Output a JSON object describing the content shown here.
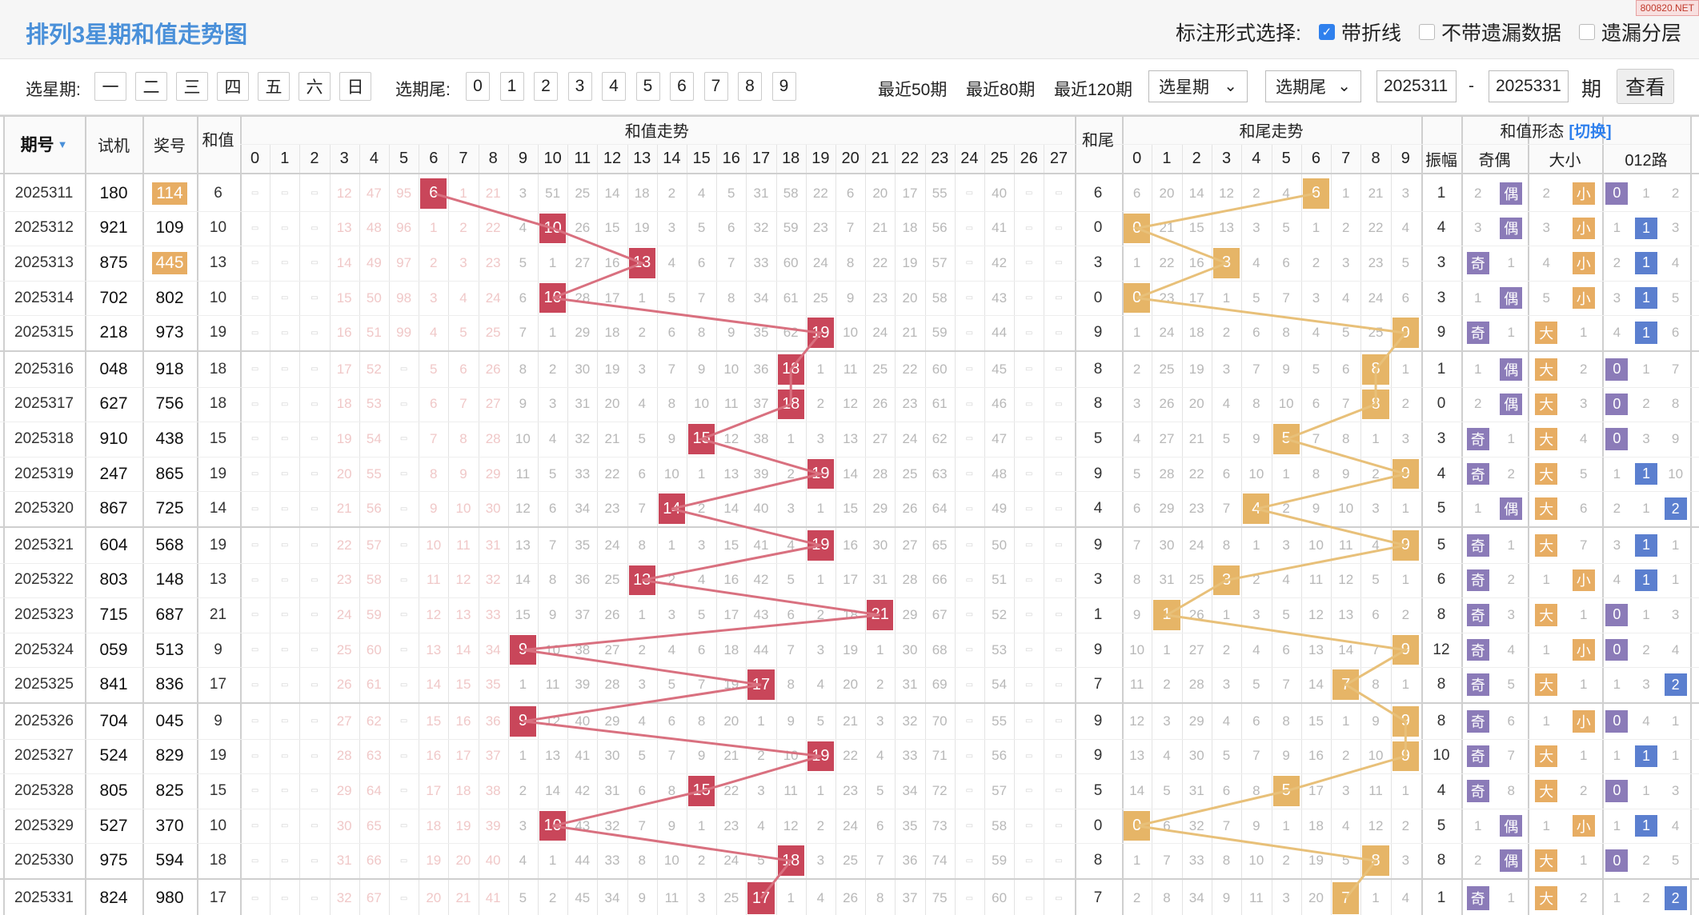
{
  "page_title": "排列3星期和值走势图",
  "site_badge": "800820.NET",
  "options": {
    "label": "标注形式选择:",
    "items": [
      {
        "label": "带折线",
        "checked": true
      },
      {
        "label": "不带遗漏数据",
        "checked": false
      },
      {
        "label": "遗漏分层",
        "checked": false
      }
    ]
  },
  "filter": {
    "weekday_label": "选星期:",
    "weekdays": [
      "一",
      "二",
      "三",
      "四",
      "五",
      "六",
      "日"
    ],
    "tail_label": "选期尾:",
    "tails": [
      "0",
      "1",
      "2",
      "3",
      "4",
      "5",
      "6",
      "7",
      "8",
      "9"
    ],
    "quick_links": [
      "最近50期",
      "最近80期",
      "最近120期"
    ],
    "weekday_select": "选星期",
    "tail_select": "选期尾",
    "from": "2025311",
    "sep": "-",
    "to": "2025331",
    "unit": "期",
    "query": "查看"
  },
  "headers": {
    "period": "期号",
    "shiji": "试机",
    "jianghao": "奖号",
    "hezhi": "和值",
    "hezhi_trend": "和值走势",
    "hezhi_cols": [
      "0",
      "1",
      "2",
      "3",
      "4",
      "5",
      "6",
      "7",
      "8",
      "9",
      "10",
      "11",
      "12",
      "13",
      "14",
      "15",
      "16",
      "17",
      "18",
      "19",
      "20",
      "21",
      "22",
      "23",
      "24",
      "25",
      "26",
      "27"
    ],
    "hewei": "和尾",
    "hewei_trend": "和尾走势",
    "hewei_cols": [
      "0",
      "1",
      "2",
      "3",
      "4",
      "5",
      "6",
      "7",
      "8",
      "9"
    ],
    "form": "和值形态",
    "switch": "[切换]",
    "form_cols": [
      "振幅",
      "奇偶",
      "大小",
      "012路"
    ]
  },
  "rows": [
    {
      "p": "2025311",
      "s": "180",
      "j": "114",
      "jh": true,
      "h": "6",
      "w": "6",
      "z": "1",
      "oe": "偶",
      "oec": "2",
      "bs": "小",
      "bsc": "2",
      "r": "0",
      "r1": "1",
      "r2": "2",
      "hm": [
        "",
        "",
        "",
        "12",
        "47",
        "95",
        "",
        "1",
        "21",
        "3",
        "51",
        "25",
        "14",
        "18",
        "2",
        "4",
        "5",
        "31",
        "58",
        "22",
        "6",
        "20",
        "17",
        "55",
        "",
        "40",
        "",
        ""
      ],
      "wm": [
        "6",
        "20",
        "14",
        "12",
        "2",
        "4",
        "",
        "1",
        "21",
        "3"
      ]
    },
    {
      "p": "2025312",
      "s": "921",
      "j": "109",
      "jh": false,
      "h": "10",
      "w": "0",
      "z": "4",
      "oe": "偶",
      "oec": "3",
      "bs": "小",
      "bsc": "3",
      "r": "1",
      "r0": "1",
      "r2": "3",
      "hm": [
        "",
        "",
        "",
        "13",
        "48",
        "96",
        "1",
        "2",
        "22",
        "4",
        "",
        "26",
        "15",
        "19",
        "3",
        "5",
        "6",
        "32",
        "59",
        "23",
        "7",
        "21",
        "18",
        "56",
        "",
        "41",
        "",
        ""
      ],
      "wm": [
        "",
        "21",
        "15",
        "13",
        "3",
        "5",
        "1",
        "2",
        "22",
        "4"
      ]
    },
    {
      "p": "2025313",
      "s": "875",
      "j": "445",
      "jh": true,
      "h": "13",
      "w": "3",
      "z": "3",
      "oe": "奇",
      "oec": "1",
      "bs": "小",
      "bsc": "4",
      "r": "1",
      "r0": "2",
      "r2": "4",
      "hm": [
        "",
        "",
        "",
        "14",
        "49",
        "97",
        "2",
        "3",
        "23",
        "5",
        "1",
        "27",
        "16",
        "",
        "4",
        "6",
        "7",
        "33",
        "60",
        "24",
        "8",
        "22",
        "19",
        "57",
        "",
        "42",
        "",
        ""
      ],
      "wm": [
        "1",
        "22",
        "16",
        "",
        "4",
        "6",
        "2",
        "3",
        "23",
        "5"
      ]
    },
    {
      "p": "2025314",
      "s": "702",
      "j": "802",
      "jh": false,
      "h": "10",
      "w": "0",
      "z": "3",
      "oe": "偶",
      "oec": "1",
      "bs": "小",
      "bsc": "5",
      "r": "1",
      "r0": "3",
      "r2": "5",
      "hm": [
        "",
        "",
        "",
        "15",
        "50",
        "98",
        "3",
        "4",
        "24",
        "6",
        "",
        "28",
        "17",
        "1",
        "5",
        "7",
        "8",
        "34",
        "61",
        "25",
        "9",
        "23",
        "20",
        "58",
        "",
        "43",
        "",
        ""
      ],
      "wm": [
        "",
        "23",
        "17",
        "1",
        "5",
        "7",
        "3",
        "4",
        "24",
        "6"
      ]
    },
    {
      "p": "2025315",
      "s": "218",
      "j": "973",
      "jh": false,
      "h": "19",
      "w": "9",
      "z": "9",
      "oe": "奇",
      "oec": "1",
      "bs": "大",
      "bsc": "1",
      "r": "1",
      "r0": "4",
      "r2": "6",
      "hm": [
        "",
        "",
        "",
        "16",
        "51",
        "99",
        "4",
        "5",
        "25",
        "7",
        "1",
        "29",
        "18",
        "2",
        "6",
        "8",
        "9",
        "35",
        "62",
        "",
        "10",
        "24",
        "21",
        "59",
        "",
        "44",
        "",
        ""
      ],
      "wm": [
        "1",
        "24",
        "18",
        "2",
        "6",
        "8",
        "4",
        "5",
        "25",
        ""
      ]
    },
    {
      "p": "2025316",
      "s": "048",
      "j": "918",
      "jh": false,
      "h": "18",
      "w": "8",
      "z": "1",
      "oe": "偶",
      "oec": "1",
      "bs": "大",
      "bsc": "2",
      "r": "0",
      "r1": "1",
      "r2": "7",
      "hm": [
        "",
        "",
        "",
        "17",
        "52",
        "",
        "5",
        "6",
        "26",
        "8",
        "2",
        "30",
        "19",
        "3",
        "7",
        "9",
        "10",
        "36",
        "",
        "1",
        "11",
        "25",
        "22",
        "60",
        "",
        "45",
        "",
        ""
      ],
      "wm": [
        "2",
        "25",
        "19",
        "3",
        "7",
        "9",
        "5",
        "6",
        "",
        "1"
      ]
    },
    {
      "p": "2025317",
      "s": "627",
      "j": "756",
      "jh": false,
      "h": "18",
      "w": "8",
      "z": "0",
      "oe": "偶",
      "oec": "2",
      "bs": "大",
      "bsc": "3",
      "r": "0",
      "r1": "2",
      "r2": "8",
      "hm": [
        "",
        "",
        "",
        "18",
        "53",
        "",
        "6",
        "7",
        "27",
        "9",
        "3",
        "31",
        "20",
        "4",
        "8",
        "10",
        "11",
        "37",
        "",
        "2",
        "12",
        "26",
        "23",
        "61",
        "",
        "46",
        "",
        ""
      ],
      "wm": [
        "3",
        "26",
        "20",
        "4",
        "8",
        "10",
        "6",
        "7",
        "",
        "2"
      ]
    },
    {
      "p": "2025318",
      "s": "910",
      "j": "438",
      "jh": false,
      "h": "15",
      "w": "5",
      "z": "3",
      "oe": "奇",
      "oec": "1",
      "bs": "大",
      "bsc": "4",
      "r": "0",
      "r1": "3",
      "r2": "9",
      "hm": [
        "",
        "",
        "",
        "19",
        "54",
        "",
        "7",
        "8",
        "28",
        "10",
        "4",
        "32",
        "21",
        "5",
        "9",
        "",
        "12",
        "38",
        "1",
        "3",
        "13",
        "27",
        "24",
        "62",
        "",
        "47",
        "",
        ""
      ],
      "wm": [
        "4",
        "27",
        "21",
        "5",
        "9",
        "",
        "7",
        "8",
        "1",
        "3"
      ]
    },
    {
      "p": "2025319",
      "s": "247",
      "j": "865",
      "jh": false,
      "h": "19",
      "w": "9",
      "z": "4",
      "oe": "奇",
      "oec": "2",
      "bs": "大",
      "bsc": "5",
      "r": "1",
      "r0": "1",
      "r2": "10",
      "hm": [
        "",
        "",
        "",
        "20",
        "55",
        "",
        "8",
        "9",
        "29",
        "11",
        "5",
        "33",
        "22",
        "6",
        "10",
        "1",
        "13",
        "39",
        "2",
        "",
        "14",
        "28",
        "25",
        "63",
        "",
        "48",
        "",
        ""
      ],
      "wm": [
        "5",
        "28",
        "22",
        "6",
        "10",
        "1",
        "8",
        "9",
        "2",
        ""
      ]
    },
    {
      "p": "2025320",
      "s": "867",
      "j": "725",
      "jh": false,
      "h": "14",
      "w": "4",
      "z": "5",
      "oe": "偶",
      "oec": "1",
      "bs": "大",
      "bsc": "6",
      "r": "2",
      "r0": "2",
      "r1": "1",
      "hm": [
        "",
        "",
        "",
        "21",
        "56",
        "",
        "9",
        "10",
        "30",
        "12",
        "6",
        "34",
        "23",
        "7",
        "",
        "2",
        "14",
        "40",
        "3",
        "1",
        "15",
        "29",
        "26",
        "64",
        "",
        "49",
        "",
        ""
      ],
      "wm": [
        "6",
        "29",
        "23",
        "7",
        "",
        "2",
        "9",
        "10",
        "3",
        "1"
      ]
    },
    {
      "p": "2025321",
      "s": "604",
      "j": "568",
      "jh": false,
      "h": "19",
      "w": "9",
      "z": "5",
      "oe": "奇",
      "oec": "1",
      "bs": "大",
      "bsc": "7",
      "r": "1",
      "r0": "3",
      "r2": "1",
      "hm": [
        "",
        "",
        "",
        "22",
        "57",
        "",
        "10",
        "11",
        "31",
        "13",
        "7",
        "35",
        "24",
        "8",
        "1",
        "3",
        "15",
        "41",
        "4",
        "",
        "16",
        "30",
        "27",
        "65",
        "",
        "50",
        "",
        ""
      ],
      "wm": [
        "7",
        "30",
        "24",
        "8",
        "1",
        "3",
        "10",
        "11",
        "4",
        ""
      ]
    },
    {
      "p": "2025322",
      "s": "803",
      "j": "148",
      "jh": false,
      "h": "13",
      "w": "3",
      "z": "6",
      "oe": "奇",
      "oec": "2",
      "bs": "小",
      "bsc": "1",
      "r": "1",
      "r0": "4",
      "r2": "1",
      "hm": [
        "",
        "",
        "",
        "23",
        "58",
        "",
        "11",
        "12",
        "32",
        "14",
        "8",
        "36",
        "25",
        "",
        "2",
        "4",
        "16",
        "42",
        "5",
        "1",
        "17",
        "31",
        "28",
        "66",
        "",
        "51",
        "",
        ""
      ],
      "wm": [
        "8",
        "31",
        "25",
        "",
        "2",
        "4",
        "11",
        "12",
        "5",
        "1"
      ]
    },
    {
      "p": "2025323",
      "s": "715",
      "j": "687",
      "jh": false,
      "h": "21",
      "w": "1",
      "z": "8",
      "oe": "奇",
      "oec": "3",
      "bs": "大",
      "bsc": "1",
      "r": "0",
      "r1": "1",
      "r2": "3",
      "hm": [
        "",
        "",
        "",
        "24",
        "59",
        "",
        "12",
        "13",
        "33",
        "15",
        "9",
        "37",
        "26",
        "1",
        "3",
        "5",
        "17",
        "43",
        "6",
        "2",
        "18",
        "",
        "29",
        "67",
        "",
        "52",
        "",
        ""
      ],
      "wm": [
        "9",
        "",
        "26",
        "1",
        "3",
        "5",
        "12",
        "13",
        "6",
        "2"
      ]
    },
    {
      "p": "2025324",
      "s": "059",
      "j": "513",
      "jh": false,
      "h": "9",
      "w": "9",
      "z": "12",
      "oe": "奇",
      "oec": "4",
      "bs": "小",
      "bsc": "1",
      "r": "0",
      "r1": "2",
      "r2": "4",
      "hm": [
        "",
        "",
        "",
        "25",
        "60",
        "",
        "13",
        "14",
        "34",
        "",
        "10",
        "38",
        "27",
        "2",
        "4",
        "6",
        "18",
        "44",
        "7",
        "3",
        "19",
        "1",
        "30",
        "68",
        "",
        "53",
        "",
        ""
      ],
      "wm": [
        "10",
        "1",
        "27",
        "2",
        "4",
        "6",
        "13",
        "14",
        "7",
        ""
      ]
    },
    {
      "p": "2025325",
      "s": "841",
      "j": "836",
      "jh": false,
      "h": "17",
      "w": "7",
      "z": "8",
      "oe": "奇",
      "oec": "5",
      "bs": "大",
      "bsc": "1",
      "r": "2",
      "r0": "1",
      "r1": "3",
      "hm": [
        "",
        "",
        "",
        "26",
        "61",
        "",
        "14",
        "15",
        "35",
        "1",
        "11",
        "39",
        "28",
        "3",
        "5",
        "7",
        "19",
        "",
        "8",
        "4",
        "20",
        "2",
        "31",
        "69",
        "",
        "54",
        "",
        ""
      ],
      "wm": [
        "11",
        "2",
        "28",
        "3",
        "5",
        "7",
        "14",
        "",
        "8",
        "1"
      ]
    },
    {
      "p": "2025326",
      "s": "704",
      "j": "045",
      "jh": false,
      "h": "9",
      "w": "9",
      "z": "8",
      "oe": "奇",
      "oec": "6",
      "bs": "小",
      "bsc": "1",
      "r": "0",
      "r1": "4",
      "r2": "1",
      "hm": [
        "",
        "",
        "",
        "27",
        "62",
        "",
        "15",
        "16",
        "36",
        "",
        "12",
        "40",
        "29",
        "4",
        "6",
        "8",
        "20",
        "1",
        "9",
        "5",
        "21",
        "3",
        "32",
        "70",
        "",
        "55",
        "",
        ""
      ],
      "wm": [
        "12",
        "3",
        "29",
        "4",
        "6",
        "8",
        "15",
        "1",
        "9",
        ""
      ]
    },
    {
      "p": "2025327",
      "s": "524",
      "j": "829",
      "jh": false,
      "h": "19",
      "w": "9",
      "z": "10",
      "oe": "奇",
      "oec": "7",
      "bs": "大",
      "bsc": "1",
      "r": "1",
      "r0": "1",
      "r2": "1",
      "hm": [
        "",
        "",
        "",
        "28",
        "63",
        "",
        "16",
        "17",
        "37",
        "1",
        "13",
        "41",
        "30",
        "5",
        "7",
        "9",
        "21",
        "2",
        "10",
        "",
        "22",
        "4",
        "33",
        "71",
        "",
        "56",
        "",
        ""
      ],
      "wm": [
        "13",
        "4",
        "30",
        "5",
        "7",
        "9",
        "16",
        "2",
        "10",
        ""
      ]
    },
    {
      "p": "2025328",
      "s": "805",
      "j": "825",
      "jh": false,
      "h": "15",
      "w": "5",
      "z": "4",
      "oe": "奇",
      "oec": "8",
      "bs": "大",
      "bsc": "2",
      "r": "0",
      "r1": "1",
      "r2": "3",
      "hm": [
        "",
        "",
        "",
        "29",
        "64",
        "",
        "17",
        "18",
        "38",
        "2",
        "14",
        "42",
        "31",
        "6",
        "8",
        "",
        "22",
        "3",
        "11",
        "1",
        "23",
        "5",
        "34",
        "72",
        "",
        "57",
        "",
        ""
      ],
      "wm": [
        "14",
        "5",
        "31",
        "6",
        "8",
        "",
        "17",
        "3",
        "11",
        "1"
      ]
    },
    {
      "p": "2025329",
      "s": "527",
      "j": "370",
      "jh": false,
      "h": "10",
      "w": "0",
      "z": "5",
      "oe": "偶",
      "oec": "1",
      "bs": "小",
      "bsc": "1",
      "r": "1",
      "r0": "1",
      "r2": "4",
      "hm": [
        "",
        "",
        "",
        "30",
        "65",
        "",
        "18",
        "19",
        "39",
        "3",
        "",
        "43",
        "32",
        "7",
        "9",
        "1",
        "23",
        "4",
        "12",
        "2",
        "24",
        "6",
        "35",
        "73",
        "",
        "58",
        "",
        ""
      ],
      "wm": [
        "",
        "6",
        "32",
        "7",
        "9",
        "1",
        "18",
        "4",
        "12",
        "2"
      ]
    },
    {
      "p": "2025330",
      "s": "975",
      "j": "594",
      "jh": false,
      "h": "18",
      "w": "8",
      "z": "8",
      "oe": "偶",
      "oec": "2",
      "bs": "大",
      "bsc": "1",
      "r": "0",
      "r1": "2",
      "r2": "5",
      "hm": [
        "",
        "",
        "",
        "31",
        "66",
        "",
        "19",
        "20",
        "40",
        "4",
        "1",
        "44",
        "33",
        "8",
        "10",
        "2",
        "24",
        "5",
        "",
        "3",
        "25",
        "7",
        "36",
        "74",
        "",
        "59",
        "",
        ""
      ],
      "wm": [
        "1",
        "7",
        "33",
        "8",
        "10",
        "2",
        "19",
        "5",
        "",
        "3"
      ]
    },
    {
      "p": "2025331",
      "s": "824",
      "j": "980",
      "jh": false,
      "h": "17",
      "w": "7",
      "z": "1",
      "oe": "奇",
      "oec": "1",
      "bs": "大",
      "bsc": "2",
      "r": "2",
      "r0": "1",
      "r1": "2",
      "hm": [
        "",
        "",
        "",
        "32",
        "67",
        "",
        "20",
        "21",
        "41",
        "5",
        "2",
        "45",
        "34",
        "9",
        "11",
        "3",
        "25",
        "",
        "1",
        "4",
        "26",
        "8",
        "37",
        "75",
        "",
        "60",
        "",
        ""
      ],
      "wm": [
        "2",
        "8",
        "34",
        "9",
        "11",
        "3",
        "20",
        "",
        "1",
        "4"
      ]
    }
  ],
  "colors": {
    "accent_blue": "#4a90d9",
    "hit_red": "#c9465a",
    "hit_gold": "#e6b567",
    "tag_purple": "#8b7bb8",
    "tag_blue": "#5b7fcf",
    "trend_line_red": "#d9707f",
    "trend_line_gold": "#e8c079"
  },
  "icons": {
    "sort": "sort-desc-icon",
    "select": "chevron-down-icon",
    "check": "check-icon"
  }
}
